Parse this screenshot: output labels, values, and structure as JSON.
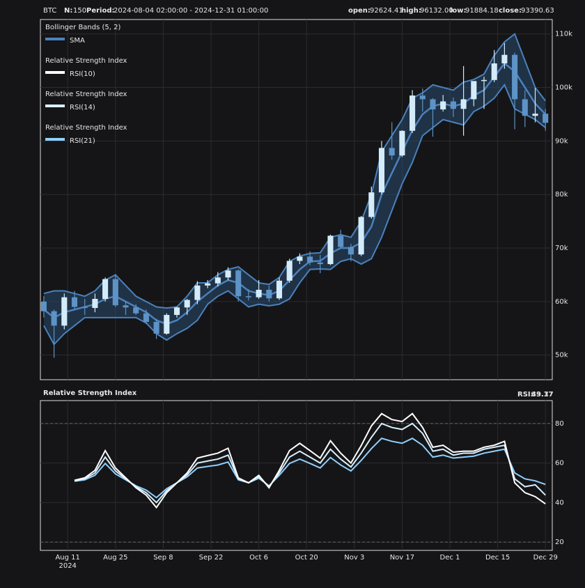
{
  "header": {
    "symbol": "BTC",
    "n_label": "N:",
    "n": 150,
    "period_label": "Period:",
    "period": "2024-08-04 02:00:00 - 2024-12-31 01:00:00",
    "open_label": "open:",
    "open": 92624.41,
    "high_label": "high:",
    "high": {
      "value": 96132,
      "label": "96132.00"
    },
    "low_label": "low:",
    "low": 91884.18,
    "close_label": "close:",
    "close": 93390.63
  },
  "chart_data": [
    {
      "type": "candlestick",
      "up_color": "#d4ecfa",
      "down_color": "#5d93c6",
      "x": [
        "2024-08-04",
        "2024-08-07",
        "2024-08-10",
        "2024-08-13",
        "2024-08-16",
        "2024-08-19",
        "2024-08-22",
        "2024-08-25",
        "2024-08-28",
        "2024-08-31",
        "2024-09-03",
        "2024-09-06",
        "2024-09-09",
        "2024-09-12",
        "2024-09-15",
        "2024-09-18",
        "2024-09-21",
        "2024-09-24",
        "2024-09-27",
        "2024-09-30",
        "2024-10-03",
        "2024-10-06",
        "2024-10-09",
        "2024-10-12",
        "2024-10-15",
        "2024-10-18",
        "2024-10-21",
        "2024-10-24",
        "2024-10-27",
        "2024-10-30",
        "2024-11-02",
        "2024-11-05",
        "2024-11-08",
        "2024-11-11",
        "2024-11-14",
        "2024-11-17",
        "2024-11-20",
        "2024-11-23",
        "2024-11-26",
        "2024-11-29",
        "2024-12-02",
        "2024-12-05",
        "2024-12-08",
        "2024-12-11",
        "2024-12-14",
        "2024-12-17",
        "2024-12-20",
        "2024-12-23",
        "2024-12-26",
        "2024-12-29"
      ],
      "open": [
        60000,
        58200,
        55500,
        60800,
        59000,
        58800,
        60500,
        64200,
        59300,
        58900,
        57800,
        56200,
        54000,
        57500,
        58900,
        60300,
        63000,
        63400,
        64500,
        65800,
        61000,
        60800,
        62200,
        60600,
        63900,
        67600,
        68400,
        67300,
        67000,
        72300,
        70200,
        68800,
        75800,
        80400,
        88700,
        87300,
        91900,
        98500,
        97800,
        95900,
        97400,
        96000,
        97800,
        101200,
        101400,
        104500,
        106100,
        97800,
        94700,
        95100
      ],
      "high": [
        61000,
        58500,
        61500,
        62000,
        60500,
        61500,
        64500,
        65000,
        60000,
        59500,
        58500,
        56800,
        57800,
        59000,
        60500,
        63800,
        64000,
        65500,
        66400,
        66000,
        62300,
        64000,
        63000,
        64500,
        68000,
        69000,
        69400,
        68700,
        72500,
        73400,
        70800,
        76000,
        81500,
        90000,
        93500,
        92000,
        99500,
        99800,
        98000,
        98600,
        98100,
        104000,
        101000,
        102000,
        107000,
        108300,
        106500,
        99500,
        99900,
        96000
      ],
      "low": [
        57000,
        49500,
        54800,
        58500,
        57500,
        58000,
        60000,
        59000,
        57500,
        57500,
        55800,
        53000,
        53800,
        57000,
        57500,
        59500,
        62500,
        62800,
        64000,
        60000,
        60200,
        60500,
        60000,
        60300,
        63500,
        67000,
        66800,
        65300,
        66800,
        70000,
        67500,
        68500,
        75500,
        80000,
        86500,
        87000,
        91500,
        95500,
        90800,
        95500,
        94500,
        91000,
        96500,
        96000,
        101000,
        103500,
        92200,
        92600,
        93500,
        91900
      ],
      "close": [
        58200,
        55500,
        60800,
        59000,
        58800,
        60500,
        64200,
        59300,
        58900,
        57800,
        56200,
        54000,
        57500,
        58900,
        60300,
        63000,
        63400,
        64500,
        65800,
        61000,
        60800,
        62200,
        60600,
        63900,
        67600,
        68400,
        67300,
        67000,
        72300,
        70200,
        68800,
        75800,
        80400,
        88700,
        87300,
        91900,
        98500,
        97800,
        95900,
        97400,
        96000,
        97800,
        101200,
        101400,
        104500,
        106100,
        97800,
        94700,
        95100,
        93390.63
      ],
      "bands": {
        "title": "Bollinger Bands (5, 2)",
        "name": "SMA",
        "color": "#4a82bd",
        "fill": "#2a4a6e",
        "upper": [
          61500,
          62000,
          62000,
          61500,
          61000,
          62000,
          64000,
          65000,
          63000,
          61000,
          60000,
          59000,
          58800,
          59000,
          61000,
          63500,
          63500,
          65000,
          66000,
          66500,
          65000,
          63500,
          63200,
          64500,
          67500,
          68500,
          69000,
          69100,
          72000,
          72500,
          72000,
          75000,
          80000,
          88000,
          91000,
          94000,
          98000,
          99000,
          100500,
          100000,
          99500,
          101000,
          101500,
          102500,
          106000,
          108500,
          110000,
          105000,
          100000,
          97500
        ],
        "middle": [
          58500,
          57000,
          58000,
          58500,
          59000,
          59500,
          60500,
          61000,
          60000,
          59000,
          58000,
          56500,
          55800,
          56500,
          58000,
          60000,
          61500,
          63000,
          64000,
          63500,
          62000,
          61500,
          61200,
          62000,
          64000,
          66000,
          67500,
          67600,
          69000,
          70000,
          70000,
          71000,
          74000,
          80000,
          84000,
          88000,
          92000,
          95000,
          96500,
          97000,
          96500,
          97000,
          98500,
          99500,
          102000,
          104500,
          103000,
          100000,
          97000,
          95000
        ],
        "lower": [
          55500,
          52000,
          54000,
          55500,
          57000,
          57000,
          57000,
          57000,
          57000,
          57000,
          56000,
          54000,
          52800,
          54000,
          55000,
          56500,
          59500,
          61000,
          62000,
          60500,
          59000,
          59500,
          59200,
          59500,
          60500,
          63500,
          66000,
          66100,
          66000,
          67500,
          68000,
          67000,
          68000,
          72000,
          77000,
          82000,
          86000,
          91000,
          92500,
          94000,
          93500,
          93000,
          95500,
          96500,
          98000,
          100500,
          96000,
          95000,
          94000,
          92500
        ]
      },
      "xlim": [
        "2024-08-03",
        "2024-12-31"
      ],
      "ylim": [
        45400,
        112700
      ],
      "yticks": [
        {
          "value": 50000,
          "label": "50k"
        },
        {
          "value": 60000,
          "label": "60k"
        },
        {
          "value": 70000,
          "label": "70k"
        },
        {
          "value": 80000,
          "label": "80k"
        },
        {
          "value": 90000,
          "label": "90k"
        },
        {
          "value": 100000,
          "label": "100k"
        },
        {
          "value": 110000,
          "label": "110k"
        }
      ],
      "grid": true
    },
    {
      "type": "line",
      "title": "Relative Strength Index",
      "readout_label": "RSI:",
      "x": [
        "2024-08-04",
        "2024-08-07",
        "2024-08-10",
        "2024-08-13",
        "2024-08-16",
        "2024-08-19",
        "2024-08-22",
        "2024-08-25",
        "2024-08-28",
        "2024-08-31",
        "2024-09-03",
        "2024-09-06",
        "2024-09-09",
        "2024-09-12",
        "2024-09-15",
        "2024-09-18",
        "2024-09-21",
        "2024-09-24",
        "2024-09-27",
        "2024-09-30",
        "2024-10-03",
        "2024-10-06",
        "2024-10-09",
        "2024-10-12",
        "2024-10-15",
        "2024-10-18",
        "2024-10-21",
        "2024-10-24",
        "2024-10-27",
        "2024-10-30",
        "2024-11-02",
        "2024-11-05",
        "2024-11-08",
        "2024-11-11",
        "2024-11-14",
        "2024-11-17",
        "2024-11-20",
        "2024-11-23",
        "2024-11-26",
        "2024-11-29",
        "2024-12-02",
        "2024-12-05",
        "2024-12-08",
        "2024-12-11",
        "2024-12-14",
        "2024-12-17",
        "2024-12-20",
        "2024-12-23",
        "2024-12-26",
        "2024-12-29"
      ],
      "series": [
        {
          "name": "RSI(10)",
          "color": "#ffffff",
          "values": [
            null,
            null,
            null,
            51.3,
            52.5,
            56.3,
            66.3,
            57.5,
            52.5,
            47.5,
            43.8,
            37.5,
            45,
            50,
            55,
            62.5,
            63.8,
            65,
            67.5,
            52.5,
            50,
            53.8,
            47.5,
            56.3,
            66.3,
            70,
            66.3,
            62.5,
            71.3,
            65,
            60,
            68.8,
            78.8,
            85,
            82,
            81,
            85,
            78,
            68,
            69,
            65.5,
            66,
            66,
            68,
            69,
            71,
            50,
            45,
            43,
            39.37
          ]
        },
        {
          "name": "RSI(14)",
          "color": "#d8f0ff",
          "values": [
            null,
            null,
            null,
            51,
            52,
            55,
            63,
            56,
            52,
            48,
            45,
            40,
            46,
            50,
            54,
            60,
            61,
            62,
            64,
            52,
            50,
            53,
            48,
            55,
            63,
            66,
            63,
            60,
            67,
            62,
            58,
            65,
            73,
            80,
            78,
            77,
            80,
            75,
            66,
            67,
            64,
            65,
            65,
            67,
            68,
            69,
            52,
            48,
            49,
            43.77
          ]
        },
        {
          "name": "RSI(21)",
          "color": "#8fd0ff",
          "values": [
            null,
            null,
            null,
            50.8,
            51.5,
            53.8,
            59.8,
            54.5,
            51.5,
            48.5,
            46.3,
            42.5,
            47,
            50,
            53,
            57.5,
            58.3,
            59,
            60.5,
            51.5,
            50,
            52.3,
            48.5,
            53.8,
            59.8,
            62,
            59.8,
            57.5,
            62.8,
            59,
            56,
            61.3,
            67.3,
            72.5,
            71,
            70,
            72.5,
            69,
            63,
            64,
            62.5,
            63,
            63.5,
            65,
            66,
            67,
            55,
            52,
            51,
            49.17
          ]
        }
      ],
      "xlim": [
        "2024-08-03",
        "2024-12-31"
      ],
      "ylim": [
        15.8,
        91.6
      ],
      "yticks": [
        20,
        40,
        60,
        80
      ],
      "reference_lines": [
        20,
        80
      ],
      "grid": true,
      "xticks": [
        {
          "value": "2024-08-11",
          "label": "Aug 11",
          "sublabel": "2024"
        },
        {
          "value": "2024-08-25",
          "label": "Aug 25"
        },
        {
          "value": "2024-09-08",
          "label": "Sep 8"
        },
        {
          "value": "2024-09-22",
          "label": "Sep 22"
        },
        {
          "value": "2024-10-06",
          "label": "Oct 6"
        },
        {
          "value": "2024-10-20",
          "label": "Oct 20"
        },
        {
          "value": "2024-11-03",
          "label": "Nov 3"
        },
        {
          "value": "2024-11-17",
          "label": "Nov 17"
        },
        {
          "value": "2024-12-01",
          "label": "Dec 1"
        },
        {
          "value": "2024-12-15",
          "label": "Dec 15"
        },
        {
          "value": "2024-12-29",
          "label": "Dec 29"
        }
      ]
    }
  ]
}
